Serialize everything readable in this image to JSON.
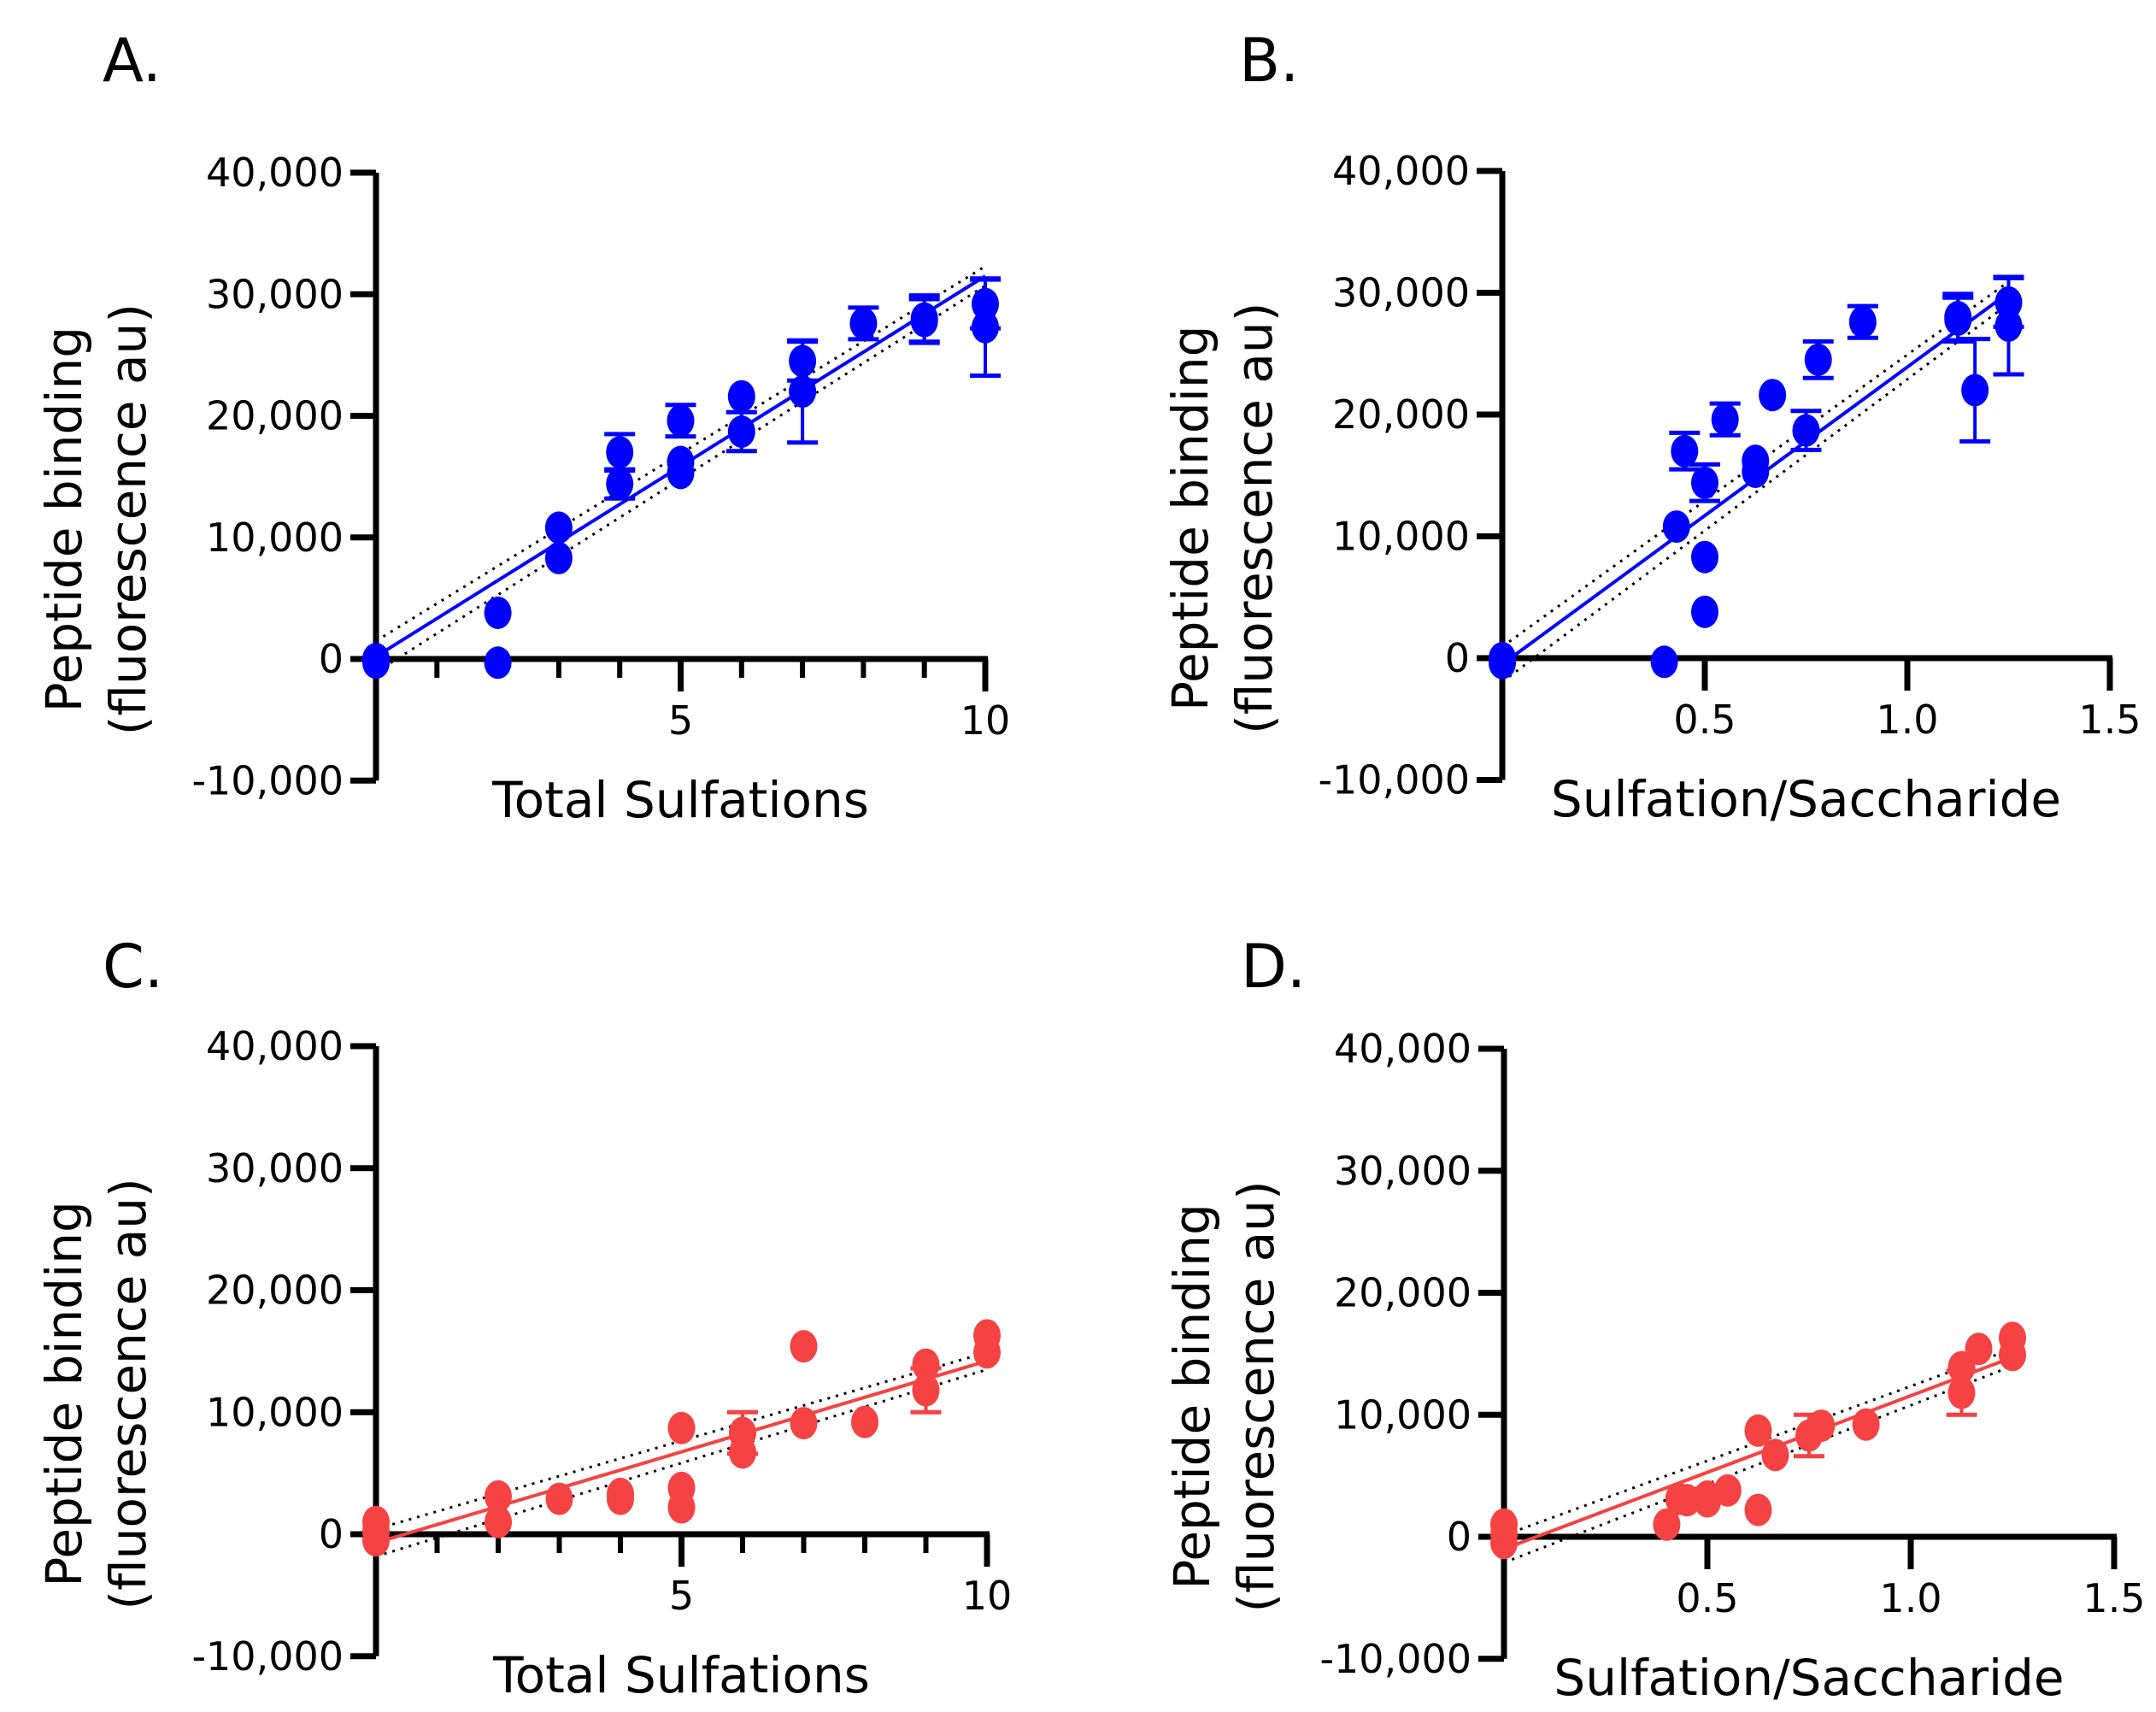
{
  "chart_data": [
    {
      "panel": "A.",
      "type": "scatter",
      "color": "#0000ff",
      "xlabel": "Total Sulfations",
      "ylabel": [
        "Peptide binding",
        "(fluorescence au)"
      ],
      "xlim": [
        0,
        10
      ],
      "ylim": [
        -10000,
        40000
      ],
      "xticks": [
        5,
        10
      ],
      "xtick_labels": [
        "5",
        "10"
      ],
      "yticks": [
        -10000,
        0,
        10000,
        20000,
        30000,
        40000
      ],
      "ytick_labels": [
        "-10,000",
        "0",
        "10,000",
        "20,000",
        "30,000",
        "40,000"
      ],
      "minor_xticks": [
        1,
        2,
        3,
        4,
        6,
        7,
        8,
        9
      ],
      "points": [
        {
          "x": 0,
          "y": 0
        },
        {
          "x": 0,
          "y": -300
        },
        {
          "x": 2,
          "y": 3800
        },
        {
          "x": 2,
          "y": -300
        },
        {
          "x": 3,
          "y": 10800
        },
        {
          "x": 3,
          "y": 8300
        },
        {
          "x": 4,
          "y": 17000,
          "err": 1500
        },
        {
          "x": 4,
          "y": 14400,
          "err": 1200
        },
        {
          "x": 5,
          "y": 19600,
          "err": 1300
        },
        {
          "x": 5,
          "y": 16200
        },
        {
          "x": 5,
          "y": 15300
        },
        {
          "x": 6,
          "y": 21600
        },
        {
          "x": 6,
          "y": 18700,
          "err": 1600
        },
        {
          "x": 7,
          "y": 24500,
          "err": 1600
        },
        {
          "x": 7,
          "y": 22000,
          "err": 4200
        },
        {
          "x": 8,
          "y": 27600,
          "err": 1300
        },
        {
          "x": 9,
          "y": 28000,
          "err": 1900
        },
        {
          "x": 9,
          "y": 27800,
          "err": 1800
        },
        {
          "x": 10,
          "y": 29200,
          "err": 2000
        },
        {
          "x": 10,
          "y": 27300,
          "err": 4000
        }
      ],
      "fit": {
        "x": [
          0,
          10
        ],
        "y": [
          200,
          31500
        ],
        "band": 800
      }
    },
    {
      "panel": "B.",
      "type": "scatter",
      "color": "#0000ff",
      "xlabel": "Sulfation/Saccharide",
      "ylabel": [
        "Peptide binding",
        "(fluorescence au)"
      ],
      "xlim": [
        0,
        1.5
      ],
      "ylim": [
        -10000,
        40000
      ],
      "xticks": [
        0.5,
        1.0,
        1.5
      ],
      "xtick_labels": [
        "0.5",
        "1.0",
        "1.5"
      ],
      "yticks": [
        -10000,
        0,
        10000,
        20000,
        30000,
        40000
      ],
      "ytick_labels": [
        "-10,000",
        "0",
        "10,000",
        "20,000",
        "30,000",
        "40,000"
      ],
      "minor_xticks": [],
      "points": [
        {
          "x": 0,
          "y": 0
        },
        {
          "x": 0,
          "y": -400
        },
        {
          "x": 0.4,
          "y": -300
        },
        {
          "x": 0.43,
          "y": 10800
        },
        {
          "x": 0.45,
          "y": 17000,
          "err": 1500
        },
        {
          "x": 0.5,
          "y": 14400,
          "err": 1500
        },
        {
          "x": 0.5,
          "y": 8300
        },
        {
          "x": 0.5,
          "y": 3800
        },
        {
          "x": 0.55,
          "y": 19600,
          "err": 1300
        },
        {
          "x": 0.625,
          "y": 16200
        },
        {
          "x": 0.625,
          "y": 15300
        },
        {
          "x": 0.667,
          "y": 21600
        },
        {
          "x": 0.75,
          "y": 18700,
          "err": 1600
        },
        {
          "x": 0.78,
          "y": 24500,
          "err": 1500
        },
        {
          "x": 0.89,
          "y": 27600,
          "err": 1300
        },
        {
          "x": 1.125,
          "y": 28000,
          "err": 1900
        },
        {
          "x": 1.125,
          "y": 27800,
          "err": 1800
        },
        {
          "x": 1.167,
          "y": 22000,
          "err": 4200
        },
        {
          "x": 1.25,
          "y": 29200,
          "err": 2000
        },
        {
          "x": 1.25,
          "y": 27300,
          "err": 4000
        }
      ],
      "fit": {
        "x": [
          0,
          1.25
        ],
        "y": [
          -500,
          30000
        ],
        "band": 900
      }
    },
    {
      "panel": "C.",
      "type": "scatter",
      "color": "#f54242",
      "xlabel": "Total Sulfations",
      "ylabel": [
        "Peptide binding",
        "(fluorescence au)"
      ],
      "xlim": [
        0,
        10
      ],
      "ylim": [
        -10000,
        40000
      ],
      "xticks": [
        5,
        10
      ],
      "xtick_labels": [
        "5",
        "10"
      ],
      "yticks": [
        -10000,
        0,
        10000,
        20000,
        30000,
        40000
      ],
      "ytick_labels": [
        "-10,000",
        "0",
        "10,000",
        "20,000",
        "30,000",
        "40,000"
      ],
      "minor_xticks": [
        1,
        2,
        3,
        4,
        6,
        7,
        8,
        9
      ],
      "points": [
        {
          "x": 0,
          "y": 1000
        },
        {
          "x": 0,
          "y": 200
        },
        {
          "x": 0,
          "y": -500
        },
        {
          "x": 2,
          "y": 3100
        },
        {
          "x": 2,
          "y": 1000
        },
        {
          "x": 3,
          "y": 2900
        },
        {
          "x": 4,
          "y": 3300
        },
        {
          "x": 4,
          "y": 2900
        },
        {
          "x": 5,
          "y": 8700
        },
        {
          "x": 5,
          "y": 3800
        },
        {
          "x": 5,
          "y": 2200
        },
        {
          "x": 6,
          "y": 8300,
          "err": 1700
        },
        {
          "x": 6,
          "y": 6700
        },
        {
          "x": 7,
          "y": 15400
        },
        {
          "x": 7,
          "y": 9100
        },
        {
          "x": 8,
          "y": 9200
        },
        {
          "x": 9,
          "y": 13900
        },
        {
          "x": 9,
          "y": 11800,
          "err": 1800
        },
        {
          "x": 10,
          "y": 16300
        },
        {
          "x": 10,
          "y": 14900
        }
      ],
      "fit": {
        "x": [
          0,
          10
        ],
        "y": [
          -700,
          14200
        ],
        "band": 700
      }
    },
    {
      "panel": "D.",
      "type": "scatter",
      "color": "#f54242",
      "xlabel": "Sulfation/Saccharide",
      "ylabel": [
        "Peptide binding",
        "(fluorescence au)"
      ],
      "xlim": [
        0,
        1.5
      ],
      "ylim": [
        -10000,
        40000
      ],
      "xticks": [
        0.5,
        1.0,
        1.5
      ],
      "xtick_labels": [
        "0.5",
        "1.0",
        "1.5"
      ],
      "yticks": [
        -10000,
        0,
        10000,
        20000,
        30000,
        40000
      ],
      "ytick_labels": [
        "-10,000",
        "0",
        "10,000",
        "20,000",
        "30,000",
        "40,000"
      ],
      "minor_xticks": [],
      "points": [
        {
          "x": 0,
          "y": 1000
        },
        {
          "x": 0,
          "y": 200
        },
        {
          "x": 0,
          "y": -500
        },
        {
          "x": 0.4,
          "y": 1000
        },
        {
          "x": 0.43,
          "y": 3100
        },
        {
          "x": 0.45,
          "y": 3000
        },
        {
          "x": 0.5,
          "y": 2900
        },
        {
          "x": 0.5,
          "y": 3300
        },
        {
          "x": 0.55,
          "y": 3800
        },
        {
          "x": 0.625,
          "y": 8700
        },
        {
          "x": 0.625,
          "y": 2200
        },
        {
          "x": 0.667,
          "y": 6700
        },
        {
          "x": 0.75,
          "y": 8300,
          "err": 1700
        },
        {
          "x": 0.78,
          "y": 9100
        },
        {
          "x": 0.89,
          "y": 9200
        },
        {
          "x": 1.125,
          "y": 13900
        },
        {
          "x": 1.125,
          "y": 11800,
          "err": 1800
        },
        {
          "x": 1.167,
          "y": 15400
        },
        {
          "x": 1.25,
          "y": 16300
        },
        {
          "x": 1.25,
          "y": 14900
        }
      ],
      "fit": {
        "x": [
          0,
          1.25
        ],
        "y": [
          -1000,
          14700
        ],
        "band": 700
      }
    }
  ]
}
